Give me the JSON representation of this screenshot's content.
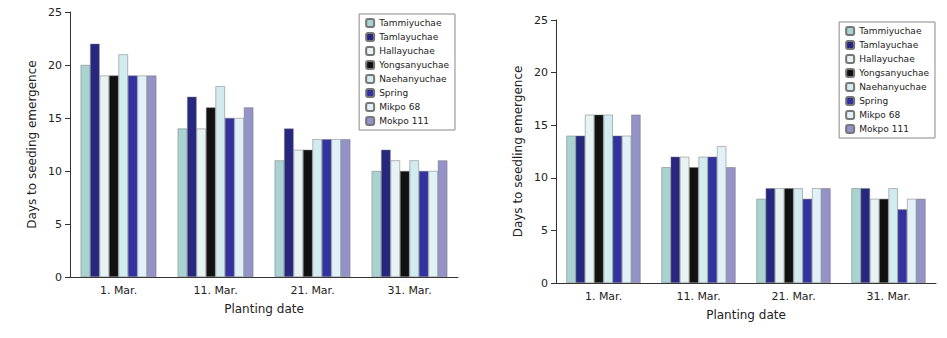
{
  "chart_data": [
    {
      "type": "bar",
      "x_label": "Planting date",
      "y_label": "Days to seeding emergence",
      "categories": [
        "1. Mar.",
        "11. Mar.",
        "21. Mar.",
        "31. Mar."
      ],
      "ylim": [
        0,
        25
      ],
      "yticks": [
        0,
        5,
        10,
        15,
        20,
        25
      ],
      "grid": false,
      "legend": "upper right",
      "series": [
        {
          "name": "Tammiyuchae",
          "color": "#a9d3d3",
          "values": [
            20,
            14,
            11,
            10
          ]
        },
        {
          "name": "Tamlayuchae",
          "color": "#27277f",
          "values": [
            22,
            17,
            14,
            12
          ]
        },
        {
          "name": "Hallayuchae",
          "color": "#e6f3f2",
          "values": [
            19,
            14,
            12,
            11
          ]
        },
        {
          "name": "Yongsanyuchae",
          "color": "#111111",
          "values": [
            19,
            16,
            12,
            10
          ]
        },
        {
          "name": "Naehanyuchae",
          "color": "#d2ebef",
          "values": [
            21,
            18,
            13,
            11
          ]
        },
        {
          "name": "Spring",
          "color": "#3232a0",
          "values": [
            19,
            15,
            13,
            10
          ]
        },
        {
          "name": "Mikpo 68",
          "color": "#e2f0f7",
          "values": [
            19,
            15,
            13,
            10
          ]
        },
        {
          "name": "Mokpo 111",
          "color": "#9393c8",
          "values": [
            19,
            16,
            13,
            11
          ]
        }
      ]
    },
    {
      "type": "bar",
      "x_label": "Planting date",
      "y_label": "Days to seedling emergence",
      "categories": [
        "1. Mar.",
        "11. Mar.",
        "21. Mar.",
        "31. Mar."
      ],
      "ylim": [
        0,
        25
      ],
      "yticks": [
        0,
        5,
        10,
        15,
        20,
        25
      ],
      "grid": false,
      "legend": "upper right",
      "series": [
        {
          "name": "Tammiyuchae",
          "color": "#a9d3d3",
          "values": [
            14,
            11,
            8,
            9
          ]
        },
        {
          "name": "Tamlayuchae",
          "color": "#27277f",
          "values": [
            14,
            12,
            9,
            9
          ]
        },
        {
          "name": "Hallayuchae",
          "color": "#e6f3f2",
          "values": [
            16,
            12,
            9,
            8
          ]
        },
        {
          "name": "Yongsanyuchae",
          "color": "#111111",
          "values": [
            16,
            11,
            9,
            8
          ]
        },
        {
          "name": "Naehanyuchae",
          "color": "#d2ebef",
          "values": [
            16,
            12,
            9,
            9
          ]
        },
        {
          "name": "Spring",
          "color": "#3232a0",
          "values": [
            14,
            12,
            8,
            7
          ]
        },
        {
          "name": "Mikpo 68",
          "color": "#e2f0f7",
          "values": [
            14,
            13,
            9,
            8
          ]
        },
        {
          "name": "Mokpo 111",
          "color": "#9393c8",
          "values": [
            16,
            11,
            9,
            8
          ]
        }
      ]
    }
  ]
}
